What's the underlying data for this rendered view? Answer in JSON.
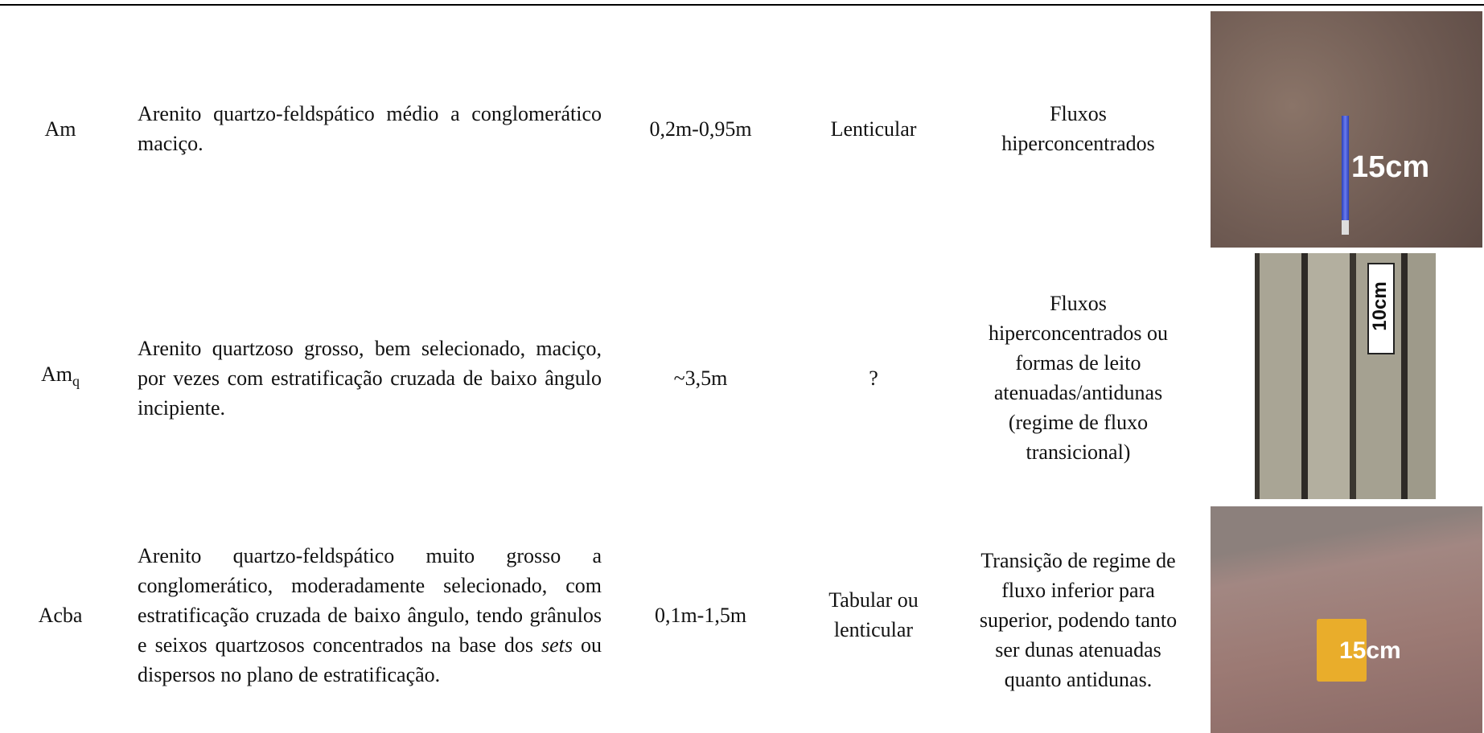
{
  "rows": [
    {
      "code": "Am",
      "description": [
        "Arenito quartzo-feldspático médio a conglomerático maciço."
      ],
      "thickness": "0,2m-0,95m",
      "geometry": "Lenticular",
      "interpretation": "Fluxos hiperconcentrados",
      "photo_label": "15cm"
    },
    {
      "code": "Am",
      "code_sub": "q",
      "description": [
        "Arenito quartzoso grosso, bem selecionado, maciço, por vezes com estratificação cruzada de baixo ângulo incipiente."
      ],
      "thickness": "~3,5m",
      "geometry": "?",
      "interpretation": "Fluxos hiperconcentrados ou formas de leito atenuadas/antidunas (regime de fluxo transicional)",
      "photo_label": "10cm"
    },
    {
      "code": "Acba",
      "description": [
        "Arenito quartzo-feldspático muito grosso a conglomerático, moderadamente selecionado, com estratificação cruzada de baixo ângulo, tendo grânulos e seixos quartzosos concentrados na base dos ",
        "sets",
        " ou dispersos no plano de estratificação."
      ],
      "italic_segment": 1,
      "thickness": "0,1m-1,5m",
      "geometry": "Tabular ou lenticular",
      "interpretation": "Transição de regime de fluxo inferior para superior, podendo tanto ser dunas atenuadas quanto antidunas.",
      "photo_label": "15cm"
    }
  ]
}
